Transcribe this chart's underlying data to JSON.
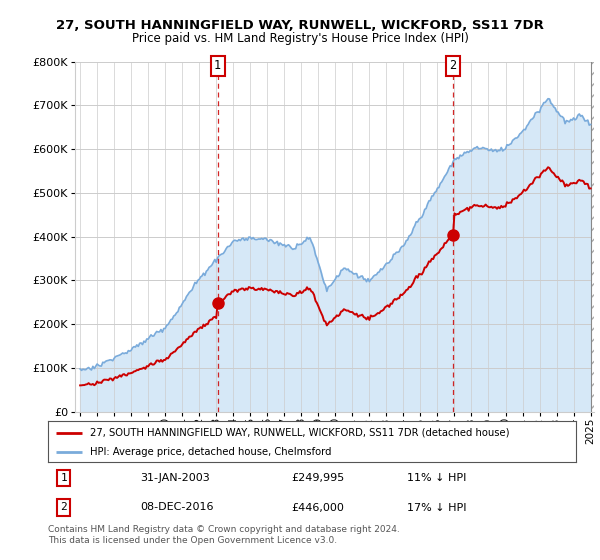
{
  "title": "27, SOUTH HANNINGFIELD WAY, RUNWELL, WICKFORD, SS11 7DR",
  "subtitle": "Price paid vs. HM Land Registry's House Price Index (HPI)",
  "legend_line1": "27, SOUTH HANNINGFIELD WAY, RUNWELL, WICKFORD, SS11 7DR (detached house)",
  "legend_line2": "HPI: Average price, detached house, Chelmsford",
  "annotation1_date": "31-JAN-2003",
  "annotation1_price": "£249,995",
  "annotation1_hpi": "11% ↓ HPI",
  "annotation2_date": "08-DEC-2016",
  "annotation2_price": "£446,000",
  "annotation2_hpi": "17% ↓ HPI",
  "footer": "Contains HM Land Registry data © Crown copyright and database right 2024.\nThis data is licensed under the Open Government Licence v3.0.",
  "hpi_color": "#7aabdb",
  "hpi_fill_color": "#d6e8f7",
  "price_color": "#cc0000",
  "marker_color": "#cc0000",
  "vline_color": "#cc0000",
  "background_color": "#ffffff",
  "plot_bg_color": "#ffffff",
  "ylim": [
    0,
    800000
  ],
  "yticks": [
    0,
    100000,
    200000,
    300000,
    400000,
    500000,
    600000,
    700000,
    800000
  ],
  "sale1_x": 2003.083,
  "sale2_x": 2016.917,
  "sale1_price": 249995,
  "sale2_price": 446000,
  "xstart": 1995.0,
  "xend": 2025.0
}
